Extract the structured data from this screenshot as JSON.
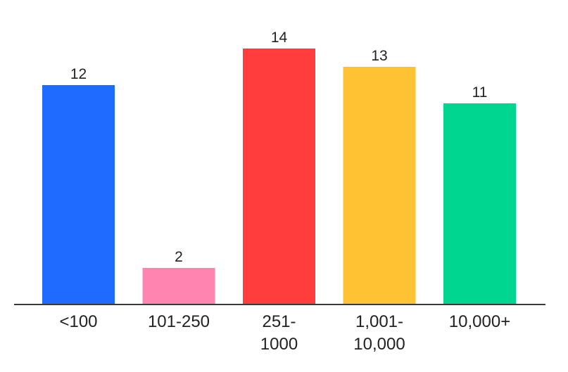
{
  "chart_data": {
    "type": "bar",
    "categories": [
      "<100",
      "101-250",
      "251-1000",
      "1,001-10,000",
      "10,000+"
    ],
    "category_lines": [
      [
        "<100"
      ],
      [
        "101-250"
      ],
      [
        "251-",
        "1000"
      ],
      [
        "1,001-",
        "10,000"
      ],
      [
        "10,000+"
      ]
    ],
    "values": [
      12,
      2,
      14,
      13,
      11
    ],
    "colors": [
      "#1f6bff",
      "#ff85b0",
      "#ff3d3d",
      "#ffc233",
      "#00d68f"
    ],
    "title": "",
    "xlabel": "",
    "ylabel": "",
    "ylim": [
      0,
      14
    ],
    "grid": false,
    "legend": "none",
    "data_labels": true
  }
}
